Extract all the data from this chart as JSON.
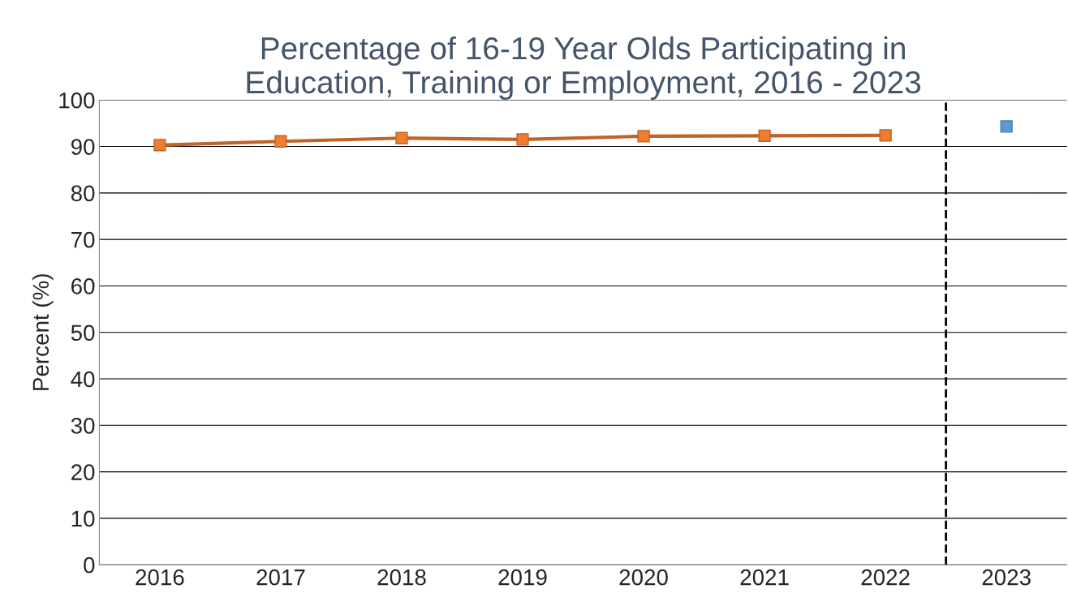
{
  "chart_data": {
    "type": "line",
    "title": "Percentage of 16-19 Year Olds Participating in\nEducation, Training or Employment, 2016 - 2023",
    "ylabel": "Percent (%)",
    "xlim": [
      2015.5,
      2023.5
    ],
    "xticks": [
      2016,
      2017,
      2018,
      2019,
      2020,
      2021,
      2022,
      2023
    ],
    "ylim": [
      0,
      100
    ],
    "yticks": [
      0,
      10,
      20,
      30,
      40,
      50,
      60,
      70,
      80,
      90,
      100
    ],
    "grid": "y",
    "legend": false,
    "marker": "square",
    "line_style": "solid",
    "series": [
      {
        "color": "#ed7d31",
        "x": [
          2016,
          2017,
          2018,
          2019,
          2020,
          2021,
          2022
        ],
        "values": [
          90.3,
          91.1,
          91.8,
          91.5,
          92.2,
          92.3,
          92.4
        ]
      },
      {
        "type": "scatter",
        "color": "#5b9bd5",
        "x": [
          2023
        ],
        "values": [
          94.3
        ]
      }
    ],
    "ref_lines": [
      {
        "axis": "x",
        "value": 2022.5,
        "label": null,
        "color": "#000000",
        "line_style": "dashed"
      }
    ]
  }
}
